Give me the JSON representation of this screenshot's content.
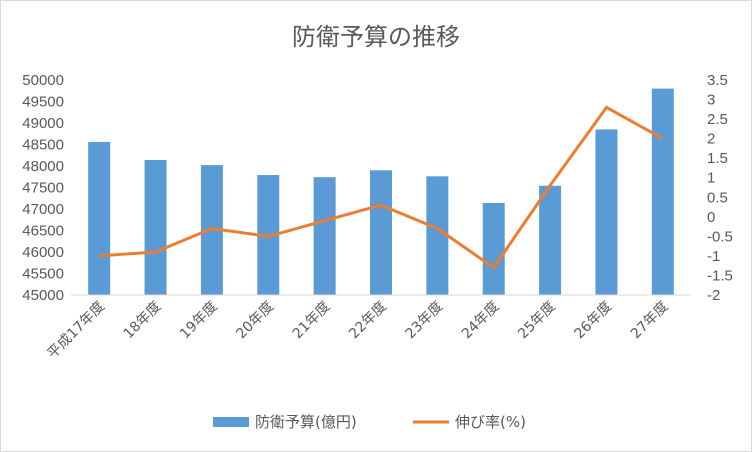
{
  "chart_data": {
    "type": "bar",
    "title": "防衛予算の推移",
    "categories": [
      "平成17年度",
      "18年度",
      "19年度",
      "20年度",
      "21年度",
      "22年度",
      "23年度",
      "24年度",
      "25年度",
      "26年度",
      "27年度"
    ],
    "series": [
      {
        "name": "防衛予算(億円)",
        "type": "bar",
        "axis": "left",
        "color": "#5b9bd5",
        "values": [
          48560,
          48140,
          48020,
          47790,
          47740,
          47900,
          47760,
          47140,
          47540,
          48850,
          49800
        ]
      },
      {
        "name": "伸び率(%)",
        "type": "line",
        "axis": "right",
        "color": "#ed7d31",
        "values": [
          -1.0,
          -0.9,
          -0.3,
          -0.5,
          -0.1,
          0.3,
          -0.3,
          -1.3,
          0.8,
          2.8,
          2.0
        ]
      }
    ],
    "ylim_left": [
      45000,
      50000
    ],
    "ylim_right": [
      -2,
      3.5
    ],
    "yticks_left": [
      "45000",
      "45500",
      "46000",
      "46500",
      "47000",
      "47500",
      "48000",
      "48500",
      "49000",
      "49500",
      "50000"
    ],
    "yticks_right": [
      "-2",
      "-1.5",
      "-1",
      "-0.5",
      "0",
      "0.5",
      "1",
      "1.5",
      "2",
      "2.5",
      "3",
      "3.5"
    ],
    "legend_position": "bottom",
    "grid": false
  }
}
